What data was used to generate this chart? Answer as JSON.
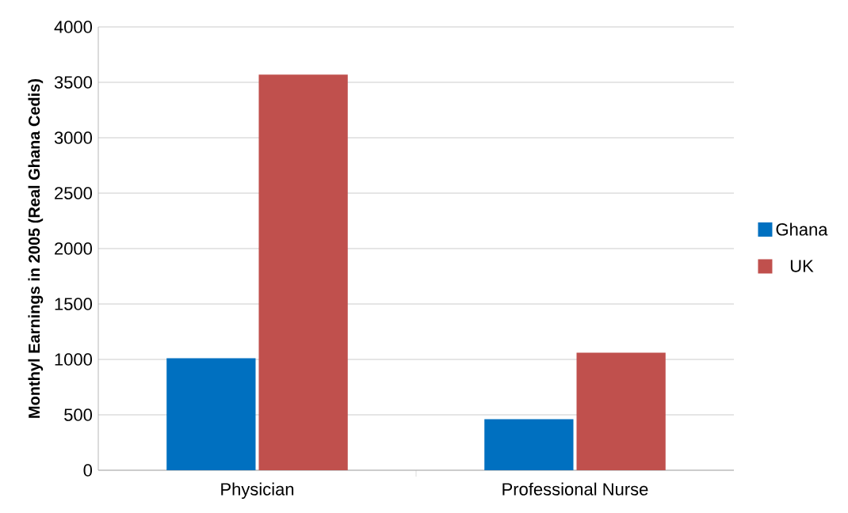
{
  "chart_data": {
    "type": "bar",
    "ylabel": "Monthyl Earnings in 2005 (Real Ghana Cedis)",
    "categories": [
      "Physician",
      "Professional Nurse"
    ],
    "series": [
      {
        "name": "Ghana",
        "color": "#0070c0",
        "values": [
          1010,
          460
        ]
      },
      {
        "name": "UK",
        "color": "#c0504d",
        "values": [
          3570,
          1060
        ]
      }
    ],
    "ylim": [
      0,
      4000
    ],
    "yticks": [
      0,
      500,
      1000,
      1500,
      2000,
      2500,
      3000,
      3500,
      4000
    ],
    "grid": "y",
    "legend": "right"
  }
}
